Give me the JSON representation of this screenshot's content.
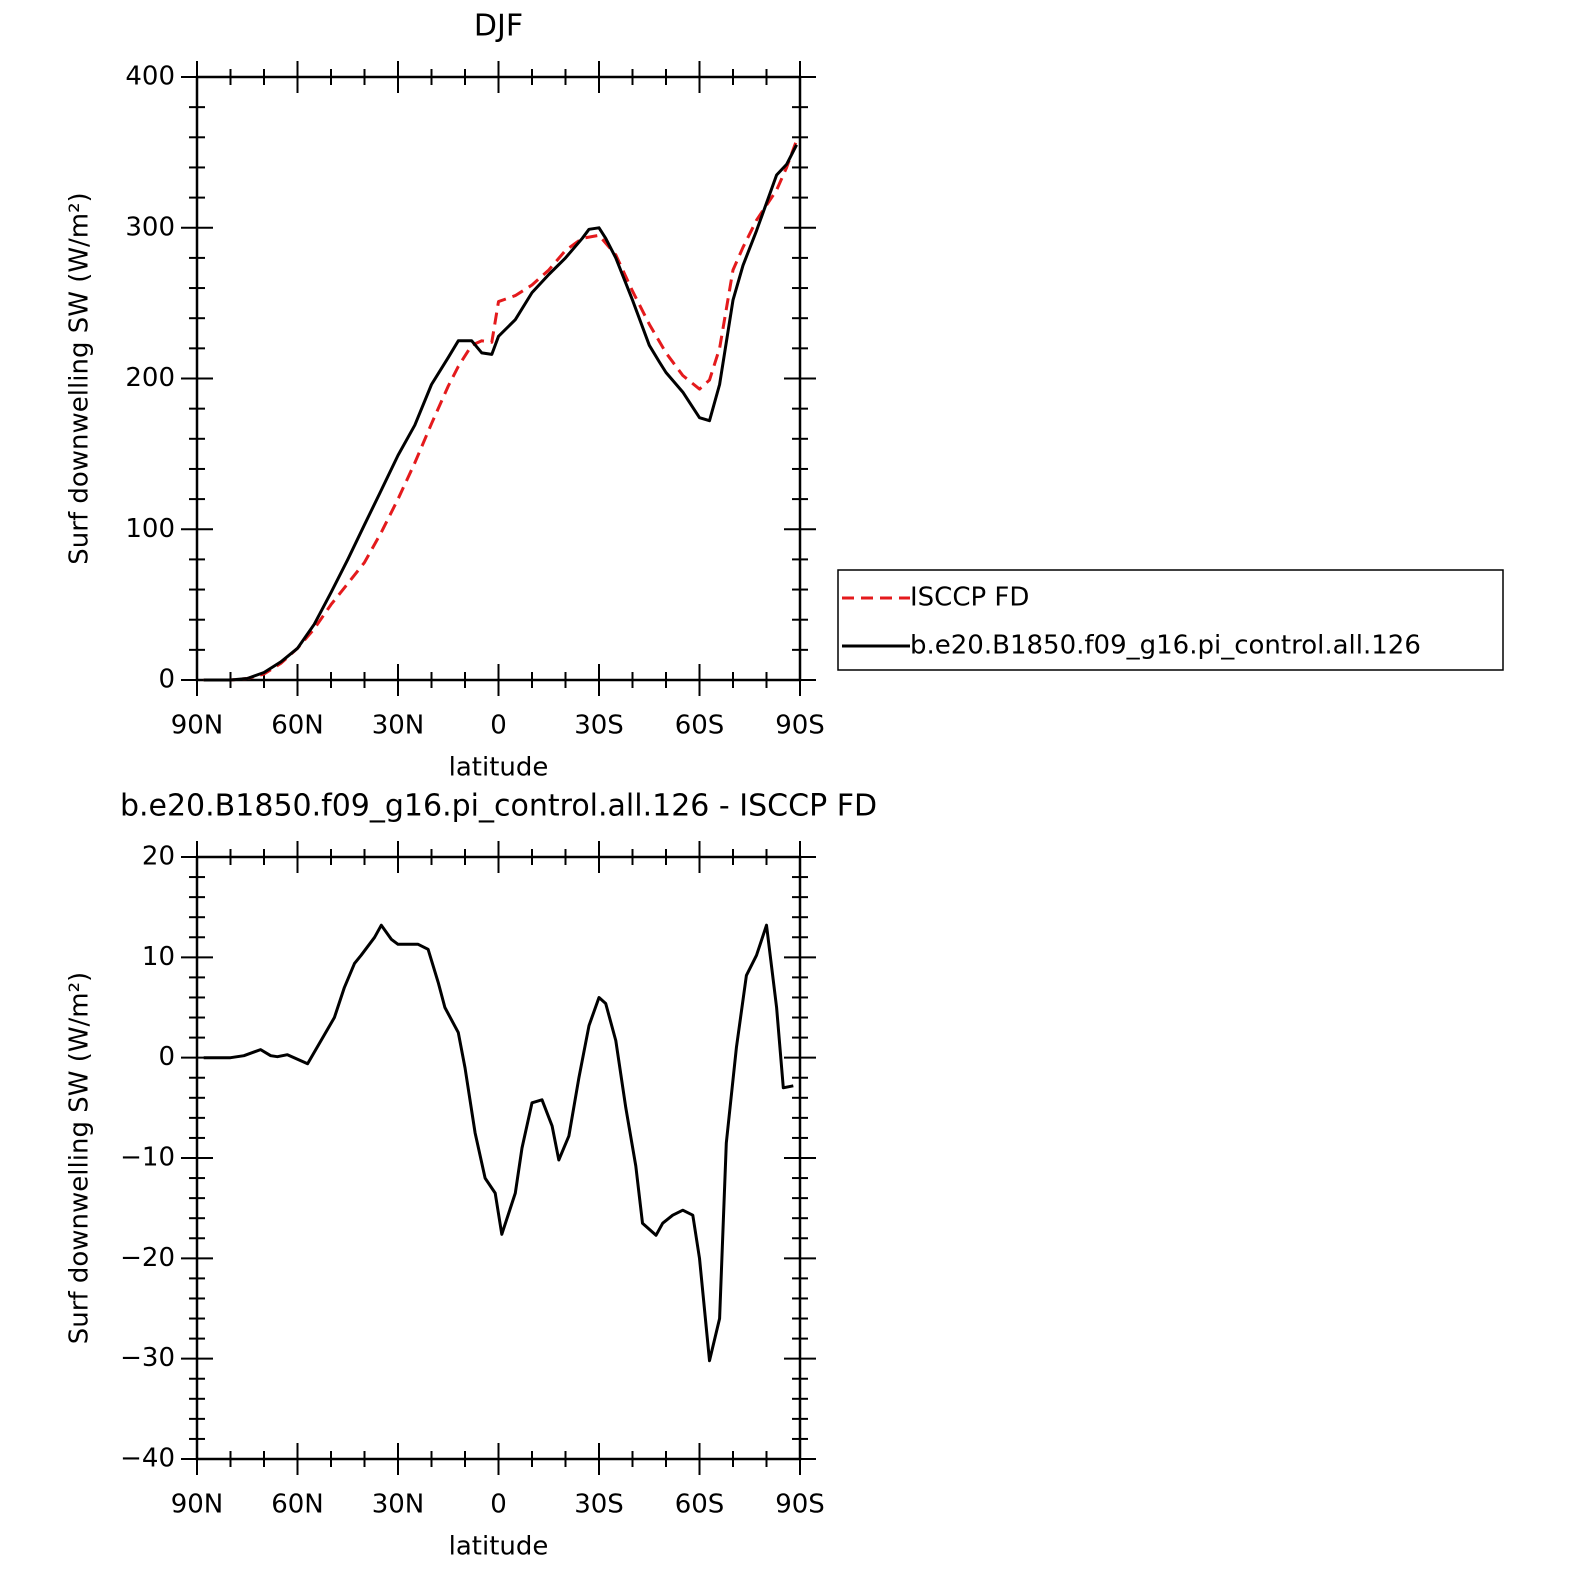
{
  "chart_data": [
    {
      "type": "line",
      "title": "DJF",
      "xlabel": "latitude",
      "ylabel": "Surf downwelling SW (W/m²)",
      "xlim": [
        90,
        -90
      ],
      "xticks": [
        {
          "value": 90,
          "label": "90N"
        },
        {
          "value": 60,
          "label": "60N"
        },
        {
          "value": 30,
          "label": "30N"
        },
        0,
        {
          "value": -30,
          "label": "30S"
        },
        {
          "value": -60,
          "label": "60S"
        },
        {
          "value": -90,
          "label": "90S"
        }
      ],
      "xminorticks": [
        80,
        70,
        50,
        40,
        20,
        10,
        -10,
        -20,
        -40,
        -50,
        -70,
        -80
      ],
      "ylim": [
        0,
        400
      ],
      "yticks": [
        0,
        100,
        200,
        300,
        400
      ],
      "yminorticks": [
        20,
        40,
        60,
        80,
        120,
        140,
        160,
        180,
        220,
        240,
        260,
        280,
        320,
        340,
        360,
        380
      ],
      "legend": "right",
      "series": [
        {
          "name": "ISCCP FD",
          "color": "#e41a1c",
          "dash": "dashed",
          "x": [
            88,
            80,
            75,
            70,
            65,
            60,
            55,
            50,
            45,
            40,
            35,
            30,
            25,
            20,
            15,
            12,
            8,
            5,
            2,
            0,
            -5,
            -10,
            -15,
            -20,
            -25,
            -30,
            -35,
            -40,
            -45,
            -50,
            -55,
            -60,
            -63,
            -66,
            -70,
            -73,
            -77,
            -83,
            -86,
            -89
          ],
          "values": [
            0,
            0,
            1,
            4,
            11,
            21,
            34,
            50,
            64,
            78,
            98,
            120,
            144,
            170,
            195,
            208,
            222,
            225,
            224,
            251,
            255,
            262,
            272,
            285,
            293,
            295,
            282,
            258,
            236,
            217,
            202,
            193,
            199,
            220,
            272,
            287,
            305,
            325,
            340,
            358
          ]
        },
        {
          "name": "b.e20.B1850.f09_g16.pi_control.all.126",
          "color": "#000000",
          "dash": "solid",
          "x": [
            88,
            80,
            75,
            70,
            65,
            60,
            55,
            50,
            45,
            40,
            35,
            30,
            25,
            20,
            15,
            12,
            8,
            5,
            2,
            0,
            -5,
            -10,
            -15,
            -20,
            -25,
            -27,
            -30,
            -32,
            -35,
            -40,
            -45,
            -48,
            -50,
            -55,
            -60,
            -63,
            -66,
            -70,
            -73,
            -77,
            -83,
            -86,
            -89
          ],
          "values": [
            0,
            0,
            1,
            5,
            12,
            21,
            37,
            58,
            80,
            103,
            126,
            149,
            169,
            196,
            214,
            225,
            225,
            217,
            216,
            228,
            239,
            257,
            269,
            280,
            293,
            299,
            300,
            293,
            280,
            252,
            222,
            211,
            204,
            191,
            174,
            172,
            196,
            252,
            275,
            298,
            335,
            342,
            355
          ]
        }
      ]
    },
    {
      "type": "line",
      "title": "b.e20.B1850.f09_g16.pi_control.all.126 - ISCCP FD",
      "xlabel": "latitude",
      "ylabel": "Surf downwelling SW (W/m²)",
      "xlim": [
        90,
        -90
      ],
      "xticks": [
        {
          "value": 90,
          "label": "90N"
        },
        {
          "value": 60,
          "label": "60N"
        },
        {
          "value": 30,
          "label": "30N"
        },
        0,
        {
          "value": -30,
          "label": "30S"
        },
        {
          "value": -60,
          "label": "60S"
        },
        {
          "value": -90,
          "label": "90S"
        }
      ],
      "xminorticks": [
        80,
        70,
        50,
        40,
        20,
        10,
        -10,
        -20,
        -40,
        -50,
        -70,
        -80
      ],
      "ylim": [
        -40,
        20
      ],
      "yticks": [
        {
          "value": -40,
          "label": "−40"
        },
        {
          "value": -30,
          "label": "−30"
        },
        {
          "value": -20,
          "label": "−20"
        },
        {
          "value": -10,
          "label": "−10"
        },
        0,
        10,
        20
      ],
      "yminorticks": [
        -38,
        -36,
        -34,
        -32,
        -28,
        -26,
        -24,
        -22,
        -18,
        -16,
        -14,
        -12,
        -8,
        -6,
        -4,
        -2,
        2,
        4,
        6,
        8,
        12,
        14,
        16,
        18
      ],
      "series": [
        {
          "color": "#000000",
          "dash": "solid",
          "x": [
            88,
            80,
            76,
            71,
            68,
            66,
            63,
            57,
            49,
            46,
            43,
            41,
            37,
            35,
            32,
            30,
            24,
            21,
            18,
            16,
            12,
            10,
            7,
            4,
            1,
            -1,
            -5,
            -7,
            -10,
            -13,
            -16,
            -18,
            -21,
            -24,
            -27,
            -30,
            -32,
            -35,
            -38,
            -41,
            -43,
            -47,
            -49,
            -52,
            -55,
            -58,
            -60,
            -63,
            -66,
            -68,
            -71,
            -74,
            -77,
            -80,
            -83,
            -85,
            -88
          ],
          "values": [
            0,
            0,
            0.2,
            0.8,
            0.2,
            0.1,
            0.3,
            -0.6,
            4,
            7,
            9.4,
            10.2,
            12,
            13.2,
            11.8,
            11.3,
            11.3,
            10.8,
            7.5,
            5,
            2.5,
            -1,
            -7.5,
            -12,
            -13.5,
            -17.6,
            -13.5,
            -9,
            -4.5,
            -4.2,
            -6.8,
            -10.2,
            -7.8,
            -2,
            3.2,
            6,
            5.4,
            1.7,
            -5,
            -10.8,
            -16.5,
            -17.7,
            -16.5,
            -15.7,
            -15.2,
            -15.7,
            -20,
            -30.2,
            -26,
            -8.5,
            1,
            8.2,
            10.2,
            13.2,
            5,
            -3,
            -2.8
          ]
        }
      ]
    }
  ]
}
